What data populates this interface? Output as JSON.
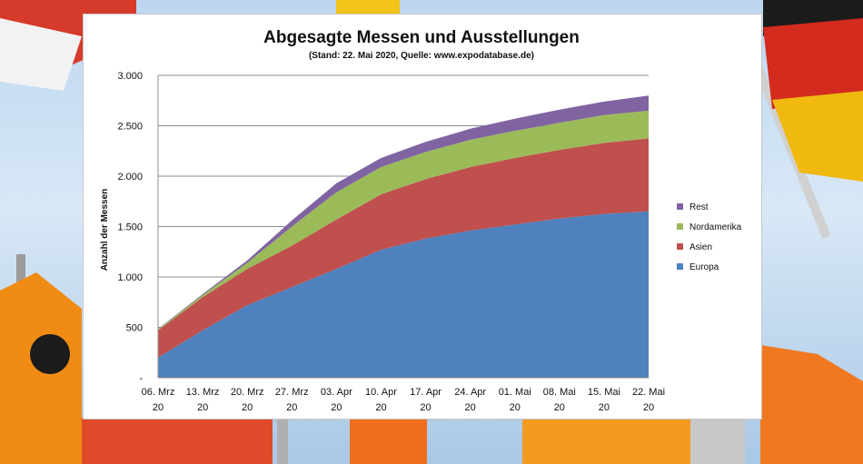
{
  "chart_data": {
    "type": "area",
    "stacked": true,
    "title": "Abgesagte Messen und Ausstellungen",
    "subtitle": "(Stand: 22. Mai 2020, Quelle:  www.expodatabase.de)",
    "ylabel": "Anzahl der Messen",
    "xlabel": "",
    "ylim": [
      0,
      3000
    ],
    "yticks": [
      0,
      500,
      1000,
      1500,
      2000,
      2500,
      3000
    ],
    "ytick_labels": [
      "-",
      "500",
      "1.000",
      "1.500",
      "2.000",
      "2.500",
      "3.000"
    ],
    "grid": true,
    "legend_position": "right",
    "categories": [
      [
        "06. Mrz",
        "20"
      ],
      [
        "13. Mrz",
        "20"
      ],
      [
        "20. Mrz",
        "20"
      ],
      [
        "27. Mrz",
        "20"
      ],
      [
        "03. Apr",
        "20"
      ],
      [
        "10. Apr",
        "20"
      ],
      [
        "17. Apr",
        "20"
      ],
      [
        "24. Apr",
        "20"
      ],
      [
        "01. Mai",
        "20"
      ],
      [
        "08. Mai",
        "20"
      ],
      [
        "15. Mai",
        "20"
      ],
      [
        "22. Mai",
        "20"
      ]
    ],
    "series": [
      {
        "name": "Europa",
        "color": "#4f81bd",
        "values": [
          200,
          470,
          720,
          900,
          1080,
          1270,
          1380,
          1460,
          1520,
          1580,
          1625,
          1650
        ]
      },
      {
        "name": "Asien",
        "color": "#c0504d",
        "values": [
          270,
          330,
          360,
          410,
          490,
          550,
          590,
          630,
          660,
          680,
          705,
          725
        ]
      },
      {
        "name": "Nordamerika",
        "color": "#9bbb59",
        "values": [
          10,
          20,
          60,
          190,
          270,
          270,
          270,
          270,
          270,
          270,
          275,
          275
        ]
      },
      {
        "name": "Rest",
        "color": "#8064a2",
        "values": [
          5,
          10,
          25,
          60,
          90,
          90,
          100,
          110,
          120,
          130,
          135,
          150
        ]
      }
    ]
  }
}
